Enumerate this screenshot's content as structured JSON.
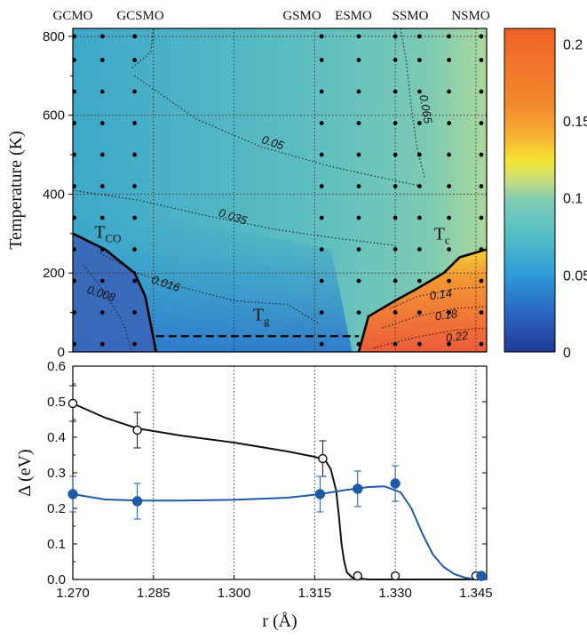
{
  "chart_data": [
    {
      "type": "heatmap",
      "description_of_axes": "phase diagram",
      "top_labels": [
        "GCMO",
        "GCSMO",
        "GSMO",
        "ESMO",
        "SSMO",
        "NSMO"
      ],
      "top_label_r": [
        1.27,
        1.282,
        1.316,
        1.323,
        1.33,
        1.346
      ],
      "xlim": [
        1.27,
        1.347
      ],
      "ylim": [
        0,
        820
      ],
      "ylabel": "Temperature (K)",
      "yticks": [
        "0",
        "200",
        "400",
        "600",
        "800"
      ],
      "ytick_values": [
        0,
        200,
        400,
        600,
        800
      ],
      "contour_labels": [
        {
          "text": "0.008",
          "r": 1.2725,
          "T": 150
        },
        {
          "text": "0.016",
          "r": 1.2845,
          "T": 175
        },
        {
          "text": "0.035",
          "r": 1.297,
          "T": 345
        },
        {
          "text": "0.05",
          "r": 1.305,
          "T": 530
        },
        {
          "text": "0.065",
          "r": 1.3345,
          "T": 650
        },
        {
          "text": "0.14",
          "r": 1.3365,
          "T": 132
        },
        {
          "text": "0.18",
          "r": 1.3375,
          "T": 80
        },
        {
          "text": "0.22",
          "r": 1.3395,
          "T": 25
        }
      ],
      "region_labels": [
        {
          "text": "T",
          "sub": "CO",
          "r": 1.274,
          "T": 290
        },
        {
          "text": "T",
          "sub": "g",
          "r": 1.3035,
          "T": 80
        },
        {
          "text": "T",
          "sub": "c",
          "r": 1.3372,
          "T": 285
        }
      ],
      "boundaries": {
        "T_CO": {
          "r": [
            1.27,
            1.276,
            1.2815,
            1.2835,
            1.2855
          ],
          "T": [
            300,
            260,
            200,
            140,
            0
          ]
        },
        "T_c": {
          "r": [
            1.3232,
            1.325,
            1.33,
            1.334,
            1.339,
            1.342,
            1.347
          ],
          "T": [
            0,
            90,
            130,
            160,
            200,
            240,
            260
          ]
        },
        "T_g": {
          "r": [
            1.2855,
            1.3232
          ],
          "T": [
            40,
            40
          ],
          "dashed": true
        }
      },
      "dot_columns_r": [
        1.27,
        1.2755,
        1.2815,
        1.3163,
        1.3232,
        1.33,
        1.3345,
        1.34,
        1.346
      ],
      "dot_rows_T": [
        20,
        100,
        180,
        260,
        340,
        420,
        500,
        580,
        660,
        740,
        800
      ],
      "colorbar": {
        "ticks": [
          "0",
          "0.05",
          "0.1",
          "0.15",
          "0.2"
        ],
        "tick_values": [
          0,
          0.05,
          0.1,
          0.15,
          0.2
        ],
        "range": [
          0,
          0.21
        ]
      }
    },
    {
      "type": "scatter",
      "xlabel": "r (Å)",
      "ylabel": "Δ (eV)",
      "xlim": [
        1.27,
        1.347
      ],
      "ylim": [
        0,
        0.6
      ],
      "xticks": [
        "1.270",
        "1.285",
        "1.300",
        "1.315",
        "1.330",
        "1.345"
      ],
      "xtick_values": [
        1.27,
        1.285,
        1.3,
        1.315,
        1.33,
        1.345
      ],
      "yticks": [
        "0.0",
        "0.1",
        "0.2",
        "0.3",
        "0.4",
        "0.5",
        "0.6"
      ],
      "ytick_values": [
        0,
        0.1,
        0.2,
        0.3,
        0.4,
        0.5,
        0.6
      ],
      "vlines": [
        1.285,
        1.3,
        1.315,
        1.33,
        1.345
      ],
      "series": [
        {
          "marker": "open-circle",
          "color": "#111111",
          "x": [
            1.27,
            1.282,
            1.3165,
            1.323,
            1.33,
            1.345
          ],
          "y": [
            0.495,
            0.42,
            0.34,
            0.01,
            0.01,
            0.01
          ],
          "err": [
            0.05,
            0.05,
            0.05,
            0,
            0,
            0
          ],
          "curve_x": [
            1.27,
            1.276,
            1.282,
            1.29,
            1.3,
            1.31,
            1.315,
            1.317,
            1.318,
            1.319,
            1.3195,
            1.32,
            1.3205,
            1.321,
            1.322,
            1.325,
            1.347
          ],
          "curve_y": [
            0.495,
            0.455,
            0.425,
            0.405,
            0.385,
            0.36,
            0.345,
            0.335,
            0.31,
            0.25,
            0.18,
            0.1,
            0.05,
            0.02,
            0.005,
            0.0,
            0.0
          ]
        },
        {
          "marker": "filled-circle",
          "color": "#1f5aa6",
          "x": [
            1.27,
            1.282,
            1.316,
            1.323,
            1.33,
            1.346
          ],
          "y": [
            0.24,
            0.22,
            0.24,
            0.255,
            0.27,
            0.01
          ],
          "err": [
            0.05,
            0.05,
            0.05,
            0.05,
            0.05,
            0
          ],
          "curve_x": [
            1.27,
            1.276,
            1.282,
            1.29,
            1.3,
            1.31,
            1.316,
            1.32,
            1.325,
            1.328,
            1.331,
            1.333,
            1.335,
            1.337,
            1.339,
            1.341,
            1.343,
            1.345,
            1.347
          ],
          "curve_y": [
            0.24,
            0.225,
            0.222,
            0.222,
            0.224,
            0.23,
            0.24,
            0.25,
            0.26,
            0.262,
            0.245,
            0.2,
            0.13,
            0.07,
            0.035,
            0.015,
            0.005,
            0.001,
            0.0
          ]
        }
      ]
    }
  ]
}
